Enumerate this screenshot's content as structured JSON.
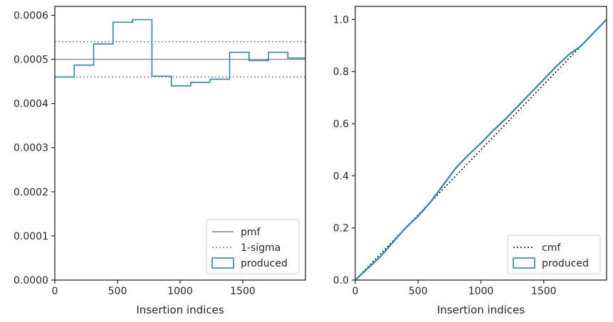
{
  "chart_data": [
    {
      "type": "line",
      "title": "",
      "xlabel": "Insertion indices",
      "ylabel": "",
      "xlim": [
        0,
        2000
      ],
      "ylim": [
        0,
        0.00062
      ],
      "xticks": [
        0,
        500,
        1000,
        1500
      ],
      "xtick_labels": [
        "0",
        "500",
        "1000",
        "1500"
      ],
      "yticks": [
        0,
        0.0001,
        0.0002,
        0.0003,
        0.0004,
        0.0005,
        0.0006
      ],
      "ytick_labels": [
        "0.0000",
        "0.0001",
        "0.0002",
        "0.0003",
        "0.0004",
        "0.0005",
        "0.0006"
      ],
      "grid": false,
      "legend_position": "lower-right",
      "series": [
        {
          "name": "pmf",
          "kind": "hline",
          "color": "#808080",
          "style": "solid",
          "y": 0.0005
        },
        {
          "name": "1-sigma",
          "kind": "hlines",
          "color": "#808080",
          "style": "dotted",
          "y": [
            0.00046,
            0.00054
          ]
        },
        {
          "name": "produced",
          "kind": "step-histogram",
          "color": "#2e86ab",
          "bin_edges": [
            0,
            155,
            310,
            465,
            620,
            775,
            930,
            1085,
            1240,
            1395,
            1550,
            1705,
            1860,
            2000
          ],
          "values": [
            0.00046,
            0.000487,
            0.000535,
            0.000584,
            0.00059,
            0.000462,
            0.00044,
            0.000448,
            0.000455,
            0.000516,
            0.000497,
            0.000516,
            0.000503
          ]
        }
      ]
    },
    {
      "type": "line",
      "title": "",
      "xlabel": "Insertion indices",
      "ylabel": "",
      "xlim": [
        0,
        2000
      ],
      "ylim": [
        0,
        1.05
      ],
      "xticks": [
        0,
        500,
        1000,
        1500
      ],
      "xtick_labels": [
        "0",
        "500",
        "1000",
        "1500"
      ],
      "yticks": [
        0,
        0.2,
        0.4,
        0.6,
        0.8,
        1.0
      ],
      "ytick_labels": [
        "0.0",
        "0.2",
        "0.4",
        "0.6",
        "0.8",
        "1.0"
      ],
      "grid": false,
      "legend_position": "lower-right",
      "series": [
        {
          "name": "cmf",
          "color": "#000000",
          "style": "dotted",
          "x": [
            0,
            2000
          ],
          "y": [
            0,
            1.0
          ]
        },
        {
          "name": "produced",
          "color": "#2e86ab",
          "style": "solid",
          "x": [
            0,
            100,
            200,
            300,
            400,
            500,
            600,
            700,
            800,
            900,
            1000,
            1100,
            1200,
            1300,
            1400,
            1500,
            1600,
            1700,
            1800,
            1900,
            2000
          ],
          "y": [
            0,
            0.045,
            0.09,
            0.145,
            0.2,
            0.245,
            0.3,
            0.365,
            0.43,
            0.48,
            0.525,
            0.575,
            0.62,
            0.67,
            0.72,
            0.77,
            0.82,
            0.865,
            0.9,
            0.95,
            1.0
          ]
        }
      ]
    }
  ]
}
